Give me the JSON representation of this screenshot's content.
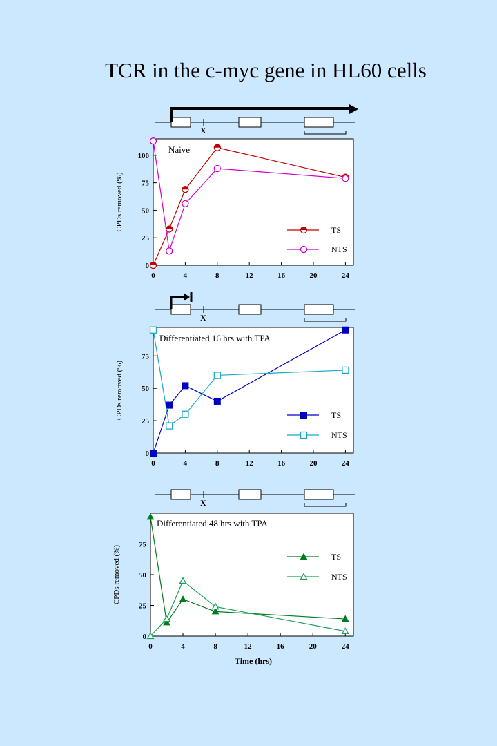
{
  "title": "TCR in the c-myc gene in HL60 cells",
  "colors": {
    "background": "#cce8ff",
    "naive_ts": "#c00000",
    "naive_nts": "#cc00cc",
    "d16_ts": "#0000c0",
    "d16_nts": "#1aa7c7",
    "d48_ts": "#007a1f",
    "d48_nts": "#1aa05a"
  },
  "gene_map_marker": "X",
  "chart_data": [
    {
      "type": "line",
      "title": "Naive",
      "xlabel": "",
      "ylabel": "CPDs removed (%)",
      "xlim": [
        0,
        25
      ],
      "ylim": [
        0,
        115
      ],
      "xticks": [
        0,
        4,
        8,
        12,
        16,
        20,
        24
      ],
      "yticks": [
        0,
        25,
        50,
        75,
        100
      ],
      "series": [
        {
          "name": "TS",
          "marker": "circle-half",
          "x": [
            0,
            2,
            4,
            8,
            24
          ],
          "y": [
            0,
            33,
            69,
            107,
            80
          ]
        },
        {
          "name": "NTS",
          "marker": "circle-open",
          "x": [
            0,
            2,
            4,
            8,
            24
          ],
          "y": [
            113,
            13,
            56,
            88,
            79
          ]
        }
      ]
    },
    {
      "type": "line",
      "title": "Differentiated 16 hrs with TPA",
      "xlabel": "",
      "ylabel": "CPDs removed (%)",
      "xlim": [
        0,
        25
      ],
      "ylim": [
        0,
        97
      ],
      "xticks": [
        0,
        4,
        8,
        12,
        16,
        20,
        24
      ],
      "yticks": [
        0,
        25,
        50,
        75
      ],
      "series": [
        {
          "name": "TS",
          "marker": "square-filled",
          "x": [
            0,
            2,
            4,
            8,
            24
          ],
          "y": [
            0,
            37,
            52,
            40,
            95
          ]
        },
        {
          "name": "NTS",
          "marker": "square-open",
          "x": [
            0,
            2,
            4,
            8,
            24
          ],
          "y": [
            95,
            21,
            30,
            60,
            64
          ]
        }
      ]
    },
    {
      "type": "line",
      "title": "Differentiated 48 hrs with TPA",
      "xlabel": "Time (hrs)",
      "ylabel": "CPDs removed (%)",
      "xlim": [
        0,
        25
      ],
      "ylim": [
        0,
        100
      ],
      "xticks": [
        0,
        4,
        8,
        12,
        16,
        20,
        24
      ],
      "yticks": [
        0,
        25,
        50,
        75
      ],
      "series": [
        {
          "name": "TS",
          "marker": "triangle-filled",
          "x": [
            0,
            2,
            4,
            8,
            24
          ],
          "y": [
            97,
            11,
            30,
            20,
            14
          ]
        },
        {
          "name": "NTS",
          "marker": "triangle-open",
          "x": [
            0,
            2,
            4,
            8,
            24
          ],
          "y": [
            0,
            14,
            45,
            24,
            4
          ]
        }
      ]
    }
  ]
}
